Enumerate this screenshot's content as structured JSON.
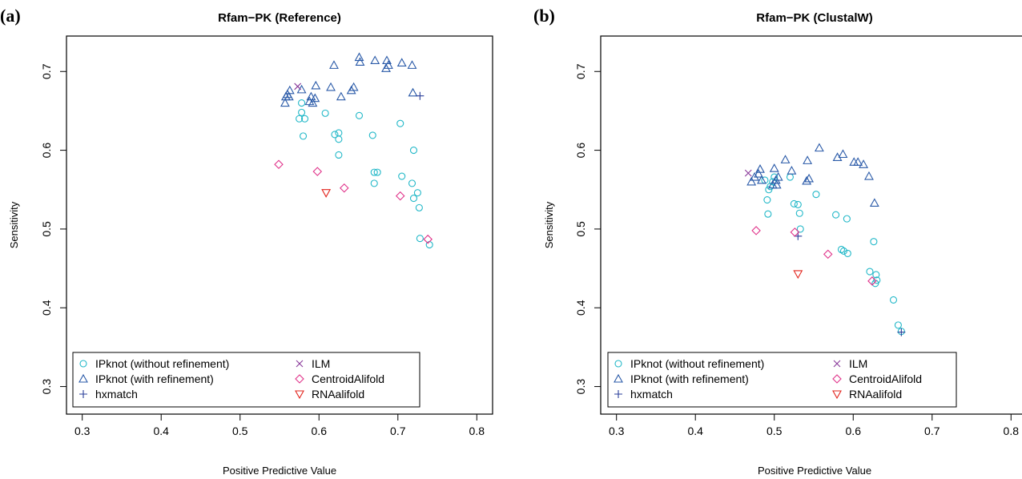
{
  "colors": {
    "IPknot (without refinement)": "#22b8c8",
    "IPknot (with refinement)": "#2a5aa8",
    "hxmatch": "#2a3f9a",
    "ILM": "#8a3a9a",
    "CentroidAlifold": "#e0338a",
    "RNAalifold": "#e2241c"
  },
  "markers": {
    "IPknot (without refinement)": "circle",
    "IPknot (with refinement)": "triangle-up",
    "hxmatch": "plus",
    "ILM": "cross",
    "CentroidAlifold": "diamond",
    "RNAalifold": "triangle-down"
  },
  "chart_data": [
    {
      "type": "scatter",
      "panel_label": "(a)",
      "title": "Rfam−PK (Reference)",
      "xlabel": "Positive Predictive Value",
      "ylabel": "Sensitivity",
      "xlim": [
        0.28,
        0.82
      ],
      "ylim": [
        0.265,
        0.745
      ],
      "xticks": [
        0.3,
        0.4,
        0.5,
        0.6,
        0.7,
        0.8
      ],
      "xtick_labels": [
        "0.3",
        "0.4",
        "0.5",
        "0.6",
        "0.7",
        "0.8"
      ],
      "yticks": [
        0.3,
        0.4,
        0.5,
        0.6,
        0.7
      ],
      "ytick_labels": [
        "0.3",
        "0.4",
        "0.5",
        "0.6",
        "0.7"
      ],
      "legend_position": "bottom-left",
      "legend": [
        "IPknot (without refinement)",
        "IPknot (with refinement)",
        "hxmatch",
        "ILM",
        "CentroidAlifold",
        "RNAalifold"
      ],
      "series": [
        {
          "name": "IPknot (without refinement)",
          "points": [
            [
              0.575,
              0.64
            ],
            [
              0.578,
              0.66
            ],
            [
              0.578,
              0.648
            ],
            [
              0.58,
              0.618
            ],
            [
              0.582,
              0.64
            ],
            [
              0.608,
              0.647
            ],
            [
              0.62,
              0.62
            ],
            [
              0.625,
              0.622
            ],
            [
              0.625,
              0.614
            ],
            [
              0.625,
              0.594
            ],
            [
              0.651,
              0.644
            ],
            [
              0.668,
              0.619
            ],
            [
              0.67,
              0.572
            ],
            [
              0.674,
              0.572
            ],
            [
              0.67,
              0.558
            ],
            [
              0.703,
              0.634
            ],
            [
              0.705,
              0.567
            ],
            [
              0.718,
              0.558
            ],
            [
              0.72,
              0.6
            ],
            [
              0.72,
              0.539
            ],
            [
              0.725,
              0.546
            ],
            [
              0.727,
              0.527
            ],
            [
              0.728,
              0.488
            ],
            [
              0.74,
              0.48
            ]
          ]
        },
        {
          "name": "IPknot (with refinement)",
          "points": [
            [
              0.557,
              0.66
            ],
            [
              0.558,
              0.668
            ],
            [
              0.56,
              0.671
            ],
            [
              0.562,
              0.668
            ],
            [
              0.563,
              0.676
            ],
            [
              0.578,
              0.677
            ],
            [
              0.588,
              0.662
            ],
            [
              0.59,
              0.668
            ],
            [
              0.592,
              0.66
            ],
            [
              0.595,
              0.666
            ],
            [
              0.596,
              0.682
            ],
            [
              0.615,
              0.68
            ],
            [
              0.619,
              0.708
            ],
            [
              0.628,
              0.668
            ],
            [
              0.641,
              0.676
            ],
            [
              0.644,
              0.68
            ],
            [
              0.651,
              0.718
            ],
            [
              0.652,
              0.712
            ],
            [
              0.671,
              0.714
            ],
            [
              0.685,
              0.704
            ],
            [
              0.686,
              0.714
            ],
            [
              0.688,
              0.708
            ],
            [
              0.705,
              0.711
            ],
            [
              0.718,
              0.708
            ],
            [
              0.719,
              0.673
            ]
          ]
        },
        {
          "name": "hxmatch",
          "points": [
            [
              0.728,
              0.669
            ]
          ]
        },
        {
          "name": "ILM",
          "points": [
            [
              0.573,
              0.681
            ]
          ]
        },
        {
          "name": "CentroidAlifold",
          "points": [
            [
              0.549,
              0.582
            ],
            [
              0.598,
              0.573
            ],
            [
              0.632,
              0.552
            ],
            [
              0.703,
              0.542
            ],
            [
              0.738,
              0.487
            ]
          ]
        },
        {
          "name": "RNAalifold",
          "points": [
            [
              0.609,
              0.546
            ]
          ]
        }
      ]
    },
    {
      "type": "scatter",
      "panel_label": "(b)",
      "title": "Rfam−PK (ClustalW)",
      "xlabel": "Positive Predictive Value",
      "ylabel": "Sensitivity",
      "xlim": [
        0.28,
        0.82
      ],
      "ylim": [
        0.265,
        0.745
      ],
      "xticks": [
        0.3,
        0.4,
        0.5,
        0.6,
        0.7,
        0.8
      ],
      "xtick_labels": [
        "0.3",
        "0.4",
        "0.5",
        "0.6",
        "0.7",
        "0.8"
      ],
      "yticks": [
        0.3,
        0.4,
        0.5,
        0.6,
        0.7
      ],
      "ytick_labels": [
        "0.3",
        "0.4",
        "0.5",
        "0.6",
        "0.7"
      ],
      "legend_position": "bottom-left",
      "legend": [
        "IPknot (without refinement)",
        "IPknot (with refinement)",
        "hxmatch",
        "ILM",
        "CentroidAlifold",
        "RNAalifold"
      ],
      "series": [
        {
          "name": "IPknot (without refinement)",
          "points": [
            [
              0.488,
              0.562
            ],
            [
              0.491,
              0.537
            ],
            [
              0.492,
              0.519
            ],
            [
              0.493,
              0.55
            ],
            [
              0.495,
              0.554
            ],
            [
              0.498,
              0.56
            ],
            [
              0.5,
              0.566
            ],
            [
              0.52,
              0.566
            ],
            [
              0.525,
              0.532
            ],
            [
              0.53,
              0.531
            ],
            [
              0.532,
              0.52
            ],
            [
              0.533,
              0.5
            ],
            [
              0.553,
              0.544
            ],
            [
              0.578,
              0.518
            ],
            [
              0.585,
              0.474
            ],
            [
              0.588,
              0.472
            ],
            [
              0.592,
              0.513
            ],
            [
              0.593,
              0.469
            ],
            [
              0.621,
              0.446
            ],
            [
              0.626,
              0.484
            ],
            [
              0.628,
              0.431
            ],
            [
              0.629,
              0.442
            ],
            [
              0.63,
              0.435
            ],
            [
              0.651,
              0.41
            ],
            [
              0.657,
              0.378
            ],
            [
              0.661,
              0.37
            ]
          ]
        },
        {
          "name": "IPknot (with refinement)",
          "points": [
            [
              0.471,
              0.56
            ],
            [
              0.475,
              0.566
            ],
            [
              0.48,
              0.57
            ],
            [
              0.482,
              0.576
            ],
            [
              0.484,
              0.562
            ],
            [
              0.498,
              0.556
            ],
            [
              0.5,
              0.577
            ],
            [
              0.502,
              0.562
            ],
            [
              0.503,
              0.556
            ],
            [
              0.505,
              0.566
            ],
            [
              0.514,
              0.588
            ],
            [
              0.522,
              0.574
            ],
            [
              0.542,
              0.587
            ],
            [
              0.541,
              0.561
            ],
            [
              0.544,
              0.564
            ],
            [
              0.557,
              0.603
            ],
            [
              0.58,
              0.591
            ],
            [
              0.587,
              0.595
            ],
            [
              0.601,
              0.585
            ],
            [
              0.606,
              0.585
            ],
            [
              0.613,
              0.582
            ],
            [
              0.62,
              0.567
            ],
            [
              0.627,
              0.533
            ]
          ]
        },
        {
          "name": "hxmatch",
          "points": [
            [
              0.53,
              0.491
            ],
            [
              0.661,
              0.369
            ]
          ]
        },
        {
          "name": "ILM",
          "points": [
            [
              0.467,
              0.571
            ]
          ]
        },
        {
          "name": "CentroidAlifold",
          "points": [
            [
              0.477,
              0.498
            ],
            [
              0.526,
              0.496
            ],
            [
              0.568,
              0.468
            ],
            [
              0.624,
              0.434
            ]
          ]
        },
        {
          "name": "RNAalifold",
          "points": [
            [
              0.53,
              0.443
            ]
          ]
        }
      ]
    }
  ]
}
